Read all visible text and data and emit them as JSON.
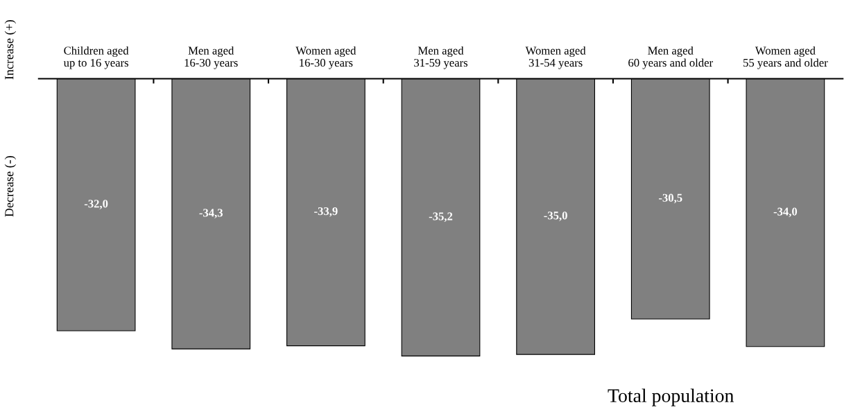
{
  "chart_data": {
    "type": "bar",
    "categories": [
      "Children aged\nup to 16 years",
      "Men aged\n16-30 years",
      "Women aged\n16-30 years",
      "Men aged\n31-59 years",
      "Women aged\n31-54 years",
      "Men aged\n60 years and older",
      "Women aged\n55 years and older"
    ],
    "values": [
      -32.0,
      -34.3,
      -33.9,
      -35.2,
      -35.0,
      -30.5,
      -34.0
    ],
    "value_labels": [
      "-32,0",
      "-34,3",
      "-33,9",
      "-35,2",
      "-35,0",
      "-30,5",
      "-34,0"
    ],
    "color": "#808080",
    "xlabel": "Total population",
    "annotations": [
      "Increase (+)",
      "Decrease (-)"
    ],
    "grid": false
  }
}
